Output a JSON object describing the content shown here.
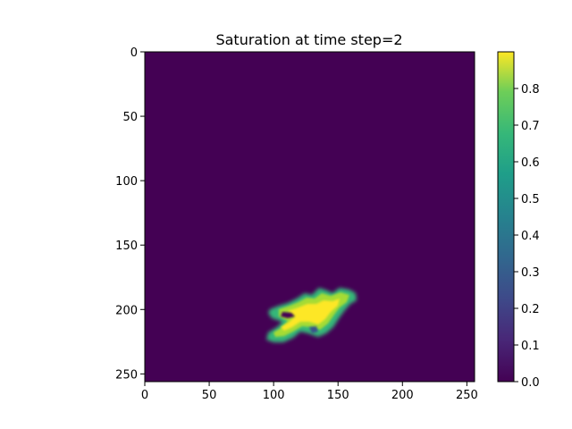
{
  "chart_data": {
    "type": "heatmap",
    "title": "Saturation at time step=2",
    "xlabel": "",
    "ylabel": "",
    "grid_shape": [
      256,
      256
    ],
    "xlim": [
      0,
      256
    ],
    "ylim": [
      256,
      0
    ],
    "x_ticks": [
      0,
      50,
      100,
      150,
      200,
      250
    ],
    "y_ticks": [
      0,
      50,
      100,
      150,
      200,
      250
    ],
    "colormap": "viridis",
    "colorbar": {
      "range": [
        0.0,
        0.9
      ],
      "ticks": [
        "0.0",
        "0.1",
        "0.2",
        "0.3",
        "0.4",
        "0.5",
        "0.6",
        "0.7",
        "0.8"
      ]
    },
    "background_value": 0.0,
    "plume": {
      "description_values": "single irregular plume of high saturation",
      "approx_col_range": [
        95,
        165
      ],
      "approx_row_range": [
        184,
        226
      ],
      "peak_value": 0.9,
      "peak_location": {
        "col": 128,
        "row": 206
      }
    },
    "colors": {
      "viridis_low": "#440154",
      "viridis_mid": "#21918c",
      "viridis_high": "#fde725"
    }
  }
}
